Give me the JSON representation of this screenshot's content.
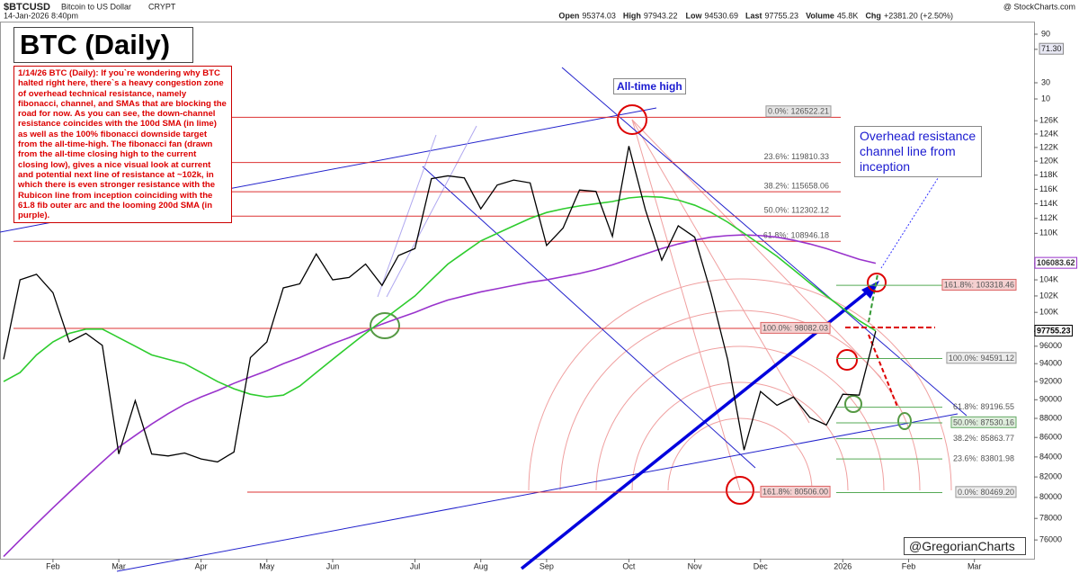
{
  "header": {
    "symbol": "$BTCUSD",
    "description": "Bitcoin to US Dollar",
    "exchange": "CRYPT",
    "timestamp": "14-Jan-2026 8:40pm",
    "source": "@ StockCharts.com",
    "quote": [
      {
        "label": "Open",
        "value": "95374.03"
      },
      {
        "label": "High",
        "value": "97943.22"
      },
      {
        "label": "Low",
        "value": "94530.69"
      },
      {
        "label": "Last",
        "value": "97755.23"
      },
      {
        "label": "Volume",
        "value": "45.8K"
      },
      {
        "label": "Chg",
        "value": "+2381.20 (+2.50%)"
      }
    ]
  },
  "chart_data": {
    "type": "line",
    "title": "BTC (Daily)",
    "commentary": "1/14/26 BTC (Daily): If you`re wondering why BTC halted right here, there`s a heavy congestion zone of overhead technical resistance, namely fibonacci, channel, and SMAs that are blocking the road for now. As you can see, the down-channel resistance coincides with the 100d SMA (in lime) as well as the 100% fibonacci downside target from the all-time-high. The fibonacci fan (drawn from the all-time closing high to the current closing low), gives a nice visual look at current and potential next line of resistance at ~102k, in which there is even stronger resistance with the Rubicon line from inception coinciding with the 61.8 fib outer arc and the looming 200d SMA (in purple).",
    "annotations": [
      "All-time high",
      "Overhead resistance channel line from inception",
      "@GregorianCharts"
    ],
    "categories": [
      null,
      null,
      null,
      "Feb",
      null,
      null,
      null,
      "Mar",
      null,
      null,
      null,
      null,
      "Apr",
      null,
      null,
      null,
      "May",
      null,
      null,
      null,
      "Jun",
      null,
      null,
      null,
      null,
      "Jul",
      null,
      null,
      null,
      "Aug",
      null,
      null,
      null,
      "Sep",
      null,
      null,
      null,
      null,
      "Oct",
      null,
      null,
      null,
      "Nov",
      null,
      null,
      null,
      "Dec",
      null,
      null,
      null,
      null,
      "2026",
      null,
      null,
      null,
      "Feb",
      null,
      null,
      null,
      "Mar"
    ],
    "series": [
      {
        "color": "#000000",
        "values": [
          94500,
          104000,
          104700,
          102400,
          96500,
          97500,
          96100,
          84300,
          89900,
          84300,
          84100,
          84400,
          83800,
          83500,
          84500,
          94700,
          96500,
          103000,
          103500,
          107300,
          104000,
          104300,
          106000,
          103300,
          107100,
          108000,
          117500,
          117900,
          117600,
          113300,
          116600,
          117300,
          116900,
          108400,
          110700,
          115900,
          115700,
          109600,
          122200,
          113200,
          106500,
          111000,
          109500,
          102300,
          94500,
          84700,
          90900,
          89400,
          90300,
          88100,
          87300,
          90600,
          90500,
          97755,
          null,
          null,
          null,
          null,
          null,
          null
        ]
      },
      {
        "color": "#2ecc2e",
        "values": [
          92000,
          93000,
          95000,
          96500,
          97500,
          98000,
          98000,
          97000,
          96000,
          95000,
          94500,
          94000,
          93000,
          92000,
          91200,
          90600,
          90300,
          90500,
          91500,
          93000,
          94500,
          96000,
          97500,
          99000,
          100500,
          102000,
          104000,
          106000,
          107500,
          109000,
          110000,
          111000,
          112000,
          112800,
          113300,
          113700,
          114000,
          114300,
          114800,
          115000,
          114900,
          114500,
          113800,
          112800,
          111500,
          110000,
          108500,
          107000,
          105300,
          103600,
          102000,
          100500,
          99000,
          97800,
          null,
          null,
          null,
          null,
          null,
          null
        ]
      },
      {
        "color": "#9933cc",
        "values": [
          74500,
          76000,
          77500,
          79000,
          80500,
          82000,
          83500,
          85000,
          86200,
          87400,
          88500,
          89500,
          90300,
          91000,
          91800,
          92500,
          93200,
          94000,
          94700,
          95500,
          96300,
          97000,
          97800,
          98600,
          99300,
          100000,
          100800,
          101500,
          102000,
          102500,
          102900,
          103300,
          103700,
          104000,
          104400,
          104800,
          105300,
          105900,
          106600,
          107300,
          108000,
          108600,
          109100,
          109500,
          109700,
          109800,
          109700,
          109500,
          109100,
          108600,
          108000,
          107300,
          106600,
          106100,
          null,
          null,
          null,
          null,
          null,
          null
        ]
      }
    ],
    "ylim": [
      74300,
      142000
    ],
    "log_scale": true,
    "grid": false,
    "yticks": [
      {
        "value": 126000,
        "label": "126K"
      },
      {
        "value": 124000,
        "label": "124K"
      },
      {
        "value": 122000,
        "label": "122K"
      },
      {
        "value": 120000,
        "label": "120K"
      },
      {
        "value": 118000,
        "label": "118K"
      },
      {
        "value": 116000,
        "label": "116K"
      },
      {
        "value": 114000,
        "label": "114K"
      },
      {
        "value": 112000,
        "label": "112K"
      },
      {
        "value": 110000,
        "label": "110K"
      },
      {
        "value": 104000,
        "label": "104K"
      },
      {
        "value": 102000,
        "label": "102K"
      },
      {
        "value": 100000,
        "label": "100K"
      },
      96000,
      94000,
      92000,
      90000,
      88000,
      86000,
      84000,
      82000,
      80000,
      78000,
      76000
    ],
    "price_labels": [
      {
        "value": 106083.62,
        "label": "106083.62",
        "color": "#9933cc"
      },
      {
        "value": 97755.23,
        "label": "97755.23",
        "color": "#000000"
      }
    ],
    "fib_retracement": [
      {
        "label": "0.0%: 126522.21",
        "value": 126522.21
      },
      {
        "label": "23.6%: 119810.33",
        "value": 119810.33
      },
      {
        "label": "38.2%: 115658.06",
        "value": 115658.06
      },
      {
        "label": "50.0%: 112302.12",
        "value": 112302.12
      },
      {
        "label": "61.8%: 108946.18",
        "value": 108946.18
      },
      {
        "label": "100.0%: 98082.03",
        "value": 98082.03
      },
      {
        "label": "161.8%: 80506.00",
        "value": 80506.0
      }
    ],
    "fib_extension": [
      {
        "label": "161.8%: 103318.46",
        "value": 103318.46
      },
      {
        "label": "100.0%: 94591.12",
        "value": 94591.12
      },
      {
        "label": "61.8%: 89196.55",
        "value": 89196.55
      },
      {
        "label": "50.0%: 87530.16",
        "value": 87530.16
      },
      {
        "label": "38.2%: 85863.77",
        "value": 85863.77
      },
      {
        "label": "23.6%: 83801.98",
        "value": 83801.98
      },
      {
        "label": "0.0%: 80469.20",
        "value": 80469.2
      }
    ],
    "indicator_ylim": [
      0,
      100
    ],
    "indicator_ticks": [
      90,
      {
        "value": 71.3,
        "label": "71.30"
      },
      30,
      10
    ]
  }
}
